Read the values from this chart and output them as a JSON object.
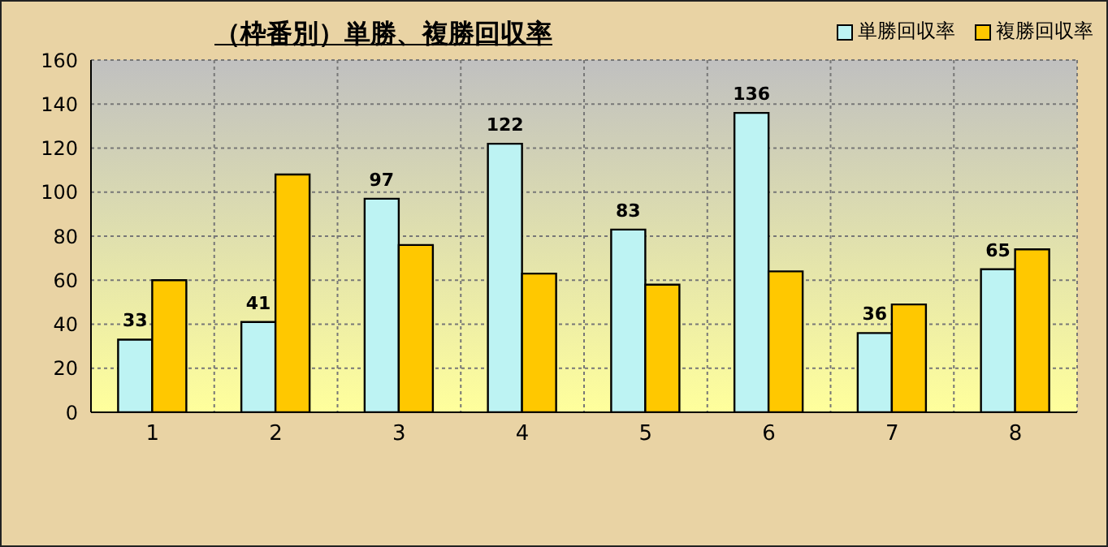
{
  "chart_data": {
    "type": "bar",
    "title": "（枠番別）単勝、複勝回収率",
    "categories": [
      "1",
      "2",
      "3",
      "4",
      "5",
      "6",
      "7",
      "8"
    ],
    "series": [
      {
        "name": "単勝回収率",
        "color": "#bdf3f3",
        "values": [
          33,
          41,
          97,
          122,
          83,
          136,
          36,
          65
        ],
        "value_labels": [
          "33",
          "41",
          "97",
          "122",
          "83",
          "136",
          "36",
          "65"
        ]
      },
      {
        "name": "複勝回収率",
        "color": "#ffc800",
        "values": [
          60,
          108,
          76,
          63,
          58,
          64,
          49,
          74
        ]
      }
    ],
    "ylim": [
      0,
      160
    ],
    "yticks": [
      0,
      20,
      40,
      60,
      80,
      100,
      120,
      140,
      160
    ],
    "grid": true,
    "legend": "top right"
  }
}
